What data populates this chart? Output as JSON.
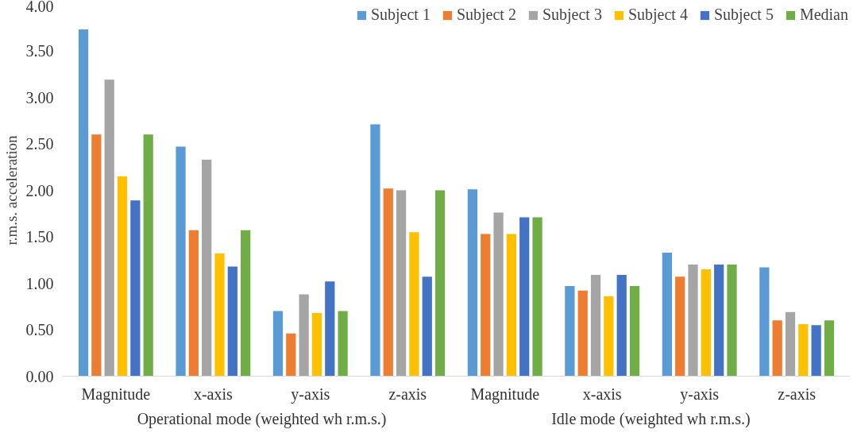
{
  "chart_data": {
    "type": "bar",
    "ylabel": "r.m.s. acceleration",
    "categories": [
      "Magnitude",
      "x-axis",
      "y-axis",
      "z-axis",
      "Magnitude",
      "x-axis",
      "y-axis",
      "z-axis"
    ],
    "annotations": [
      "Operational mode (weighted wh r.m.s.)",
      "Idle mode (weighted wh r.m.s.)"
    ],
    "series": [
      {
        "name": "Subject 1",
        "color": "#5b9bd5",
        "values": [
          3.73,
          2.47,
          0.7,
          2.71,
          2.01,
          0.97,
          1.33,
          1.17
        ]
      },
      {
        "name": "Subject 2",
        "color": "#ed7d31",
        "values": [
          2.6,
          1.57,
          0.46,
          2.02,
          1.53,
          0.92,
          1.07,
          0.6
        ]
      },
      {
        "name": "Subject 3",
        "color": "#a5a5a5",
        "values": [
          3.19,
          2.33,
          0.88,
          2.0,
          1.76,
          1.09,
          1.2,
          0.69
        ]
      },
      {
        "name": "Subject 4",
        "color": "#ffc000",
        "values": [
          2.15,
          1.32,
          0.68,
          1.55,
          1.53,
          0.86,
          1.15,
          0.56
        ]
      },
      {
        "name": "Subject 5",
        "color": "#4472c4",
        "values": [
          1.89,
          1.18,
          1.02,
          1.07,
          1.71,
          1.09,
          1.2,
          0.55
        ]
      },
      {
        "name": "Median",
        "color": "#70ad47",
        "values": [
          2.6,
          1.57,
          0.7,
          2.0,
          1.71,
          0.97,
          1.2,
          0.6
        ]
      }
    ],
    "ylim": [
      0,
      4
    ],
    "yticks": [
      {
        "value": 0,
        "label": "0.00"
      },
      {
        "value": 0.5,
        "label": "0.50"
      },
      {
        "value": 1,
        "label": "1.00"
      },
      {
        "value": 1.5,
        "label": "1.50"
      },
      {
        "value": 2,
        "label": "2.00"
      },
      {
        "value": 2.5,
        "label": "2.50"
      },
      {
        "value": 3,
        "label": "3.00"
      },
      {
        "value": 3.5,
        "label": "3.50"
      },
      {
        "value": 4,
        "label": "4.00"
      }
    ],
    "grid": false,
    "legend": "top"
  }
}
